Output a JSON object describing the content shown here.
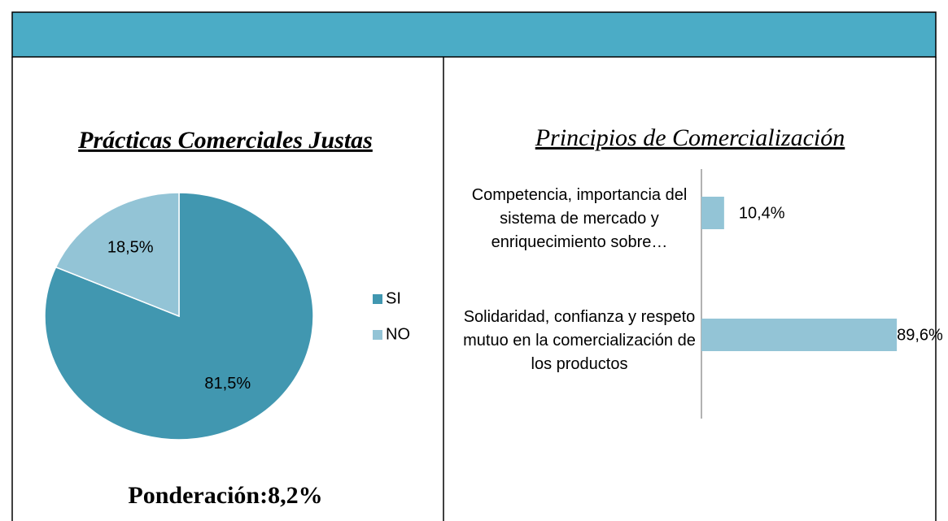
{
  "chart_data": [
    {
      "type": "pie",
      "title": "Prácticas Comerciales Justas",
      "categories": [
        "SI",
        "NO"
      ],
      "values": [
        81.5,
        18.5
      ],
      "value_labels": [
        "81,5%",
        "18,5%"
      ],
      "colors": [
        "#4197b0",
        "#93c4d6"
      ],
      "legend": "right"
    },
    {
      "type": "barh",
      "title": "Principios de Comercialización",
      "categories": [
        "Competencia, importancia del sistema de mercado y enriquecimiento sobre…",
        "Solidaridad, confianza y respeto mutuo en la comercialización de los productos"
      ],
      "values": [
        10.4,
        89.6
      ],
      "value_labels": [
        "10,4%",
        "89,6%"
      ],
      "color": "#93c4d6",
      "xlim": [
        0,
        100
      ]
    }
  ],
  "footer": "Ponderación:8,2%"
}
